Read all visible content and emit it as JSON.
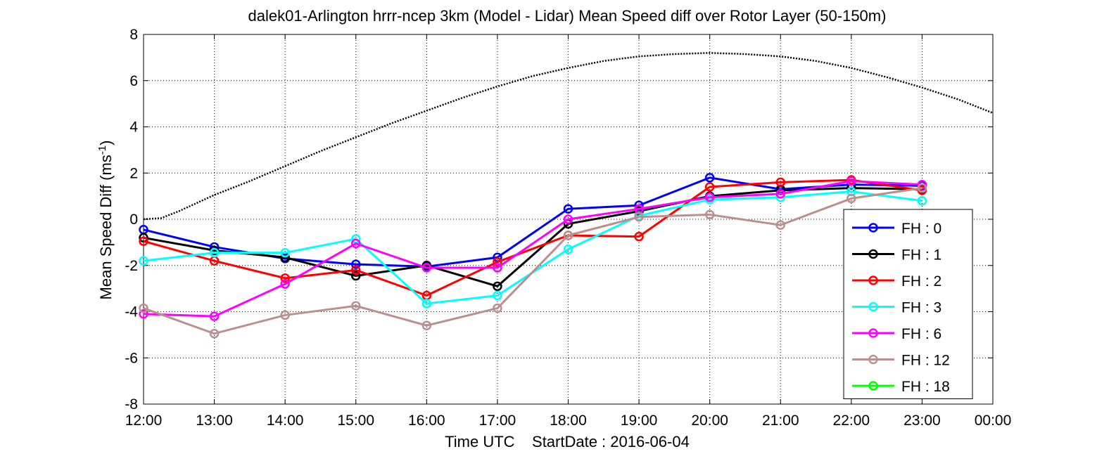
{
  "chart_data": {
    "type": "line",
    "title": "dalek01-Arlington hrrr-ncep 3km (Model - Lidar) Mean Speed diff over Rotor Layer (50-150m)",
    "xlabel": "Time UTC    StartDate : 2016-06-04",
    "ylabel": {
      "main": "Mean Speed Diff (ms",
      "superscript": "-1",
      "close": ")"
    },
    "ylim": [
      -8,
      8
    ],
    "yticks": [
      -8,
      -6,
      -4,
      -2,
      0,
      2,
      4,
      6,
      8
    ],
    "xlim": [
      0,
      12
    ],
    "xticks": [
      0,
      1,
      2,
      3,
      4,
      5,
      6,
      7,
      8,
      9,
      10,
      11,
      12
    ],
    "xticklabels": [
      "12:00",
      "13:00",
      "14:00",
      "15:00",
      "16:00",
      "17:00",
      "18:00",
      "19:00",
      "20:00",
      "21:00",
      "22:00",
      "23:00",
      "00:00"
    ],
    "grid": true,
    "legend_position": "bottom-right",
    "series": [
      {
        "name": "FH : 0",
        "color": "#0000ff",
        "x": [
          0,
          1,
          2,
          3,
          4,
          5,
          6,
          7,
          8,
          9,
          10,
          11
        ],
        "values": [
          -0.45,
          -1.2,
          -1.7,
          -1.95,
          -2.05,
          -1.65,
          0.45,
          0.6,
          1.8,
          1.3,
          1.5,
          1.45
        ]
      },
      {
        "name": "FH : 1",
        "color": "#000000",
        "x": [
          0,
          1,
          2,
          3,
          4,
          5,
          6,
          7,
          8,
          9,
          10,
          11
        ],
        "values": [
          -0.8,
          -1.35,
          -1.65,
          -2.45,
          -2.0,
          -2.9,
          -0.2,
          0.35,
          1.0,
          1.25,
          1.35,
          1.3
        ]
      },
      {
        "name": "FH : 2",
        "color": "#ff0000",
        "x": [
          0,
          1,
          2,
          3,
          4,
          5,
          6,
          7,
          8,
          9,
          10,
          11
        ],
        "values": [
          -0.95,
          -1.8,
          -2.55,
          -2.2,
          -3.3,
          -1.85,
          -0.7,
          -0.75,
          1.4,
          1.6,
          1.7,
          1.25
        ]
      },
      {
        "name": "FH : 3",
        "color": "#00ffff",
        "x": [
          0,
          1,
          2,
          3,
          4,
          5,
          6,
          7,
          8,
          9,
          10,
          11
        ],
        "values": [
          -1.8,
          -1.45,
          -1.45,
          -0.85,
          -3.65,
          -3.3,
          -1.3,
          0.15,
          0.85,
          0.95,
          1.2,
          0.8
        ]
      },
      {
        "name": "FH : 6",
        "color": "#ff00ff",
        "x": [
          0,
          1,
          2,
          3,
          4,
          5,
          6,
          7,
          8,
          9,
          10,
          11
        ],
        "values": [
          -4.1,
          -4.2,
          -2.8,
          -1.05,
          -2.1,
          -2.1,
          0.0,
          0.45,
          0.95,
          1.1,
          1.65,
          1.5
        ]
      },
      {
        "name": "FH : 12",
        "color": "#bc8f8f",
        "x": [
          0,
          1,
          2,
          3,
          4,
          5,
          6,
          7,
          8,
          9,
          10,
          11
        ],
        "values": [
          -3.85,
          -4.95,
          -4.15,
          -3.75,
          -4.6,
          -3.85,
          -0.7,
          0.1,
          0.2,
          -0.25,
          0.9,
          1.35
        ]
      },
      {
        "name": "FH : 18",
        "color": "#00ff00",
        "x": [],
        "values": []
      }
    ],
    "reference_curve": {
      "style": "dotted",
      "color": "#000000",
      "x": [
        0,
        0.25,
        0.5,
        1,
        1.5,
        2,
        2.5,
        3,
        3.5,
        4,
        4.5,
        5,
        5.5,
        6,
        6.5,
        7,
        7.5,
        8,
        8.5,
        9,
        9.5,
        10,
        10.5,
        11,
        11.5,
        12
      ],
      "values": [
        0.0,
        0.05,
        0.35,
        1.05,
        1.65,
        2.3,
        2.95,
        3.55,
        4.15,
        4.7,
        5.25,
        5.75,
        6.2,
        6.55,
        6.85,
        7.05,
        7.15,
        7.2,
        7.15,
        7.05,
        6.85,
        6.55,
        6.15,
        5.7,
        5.2,
        4.6
      ]
    }
  }
}
